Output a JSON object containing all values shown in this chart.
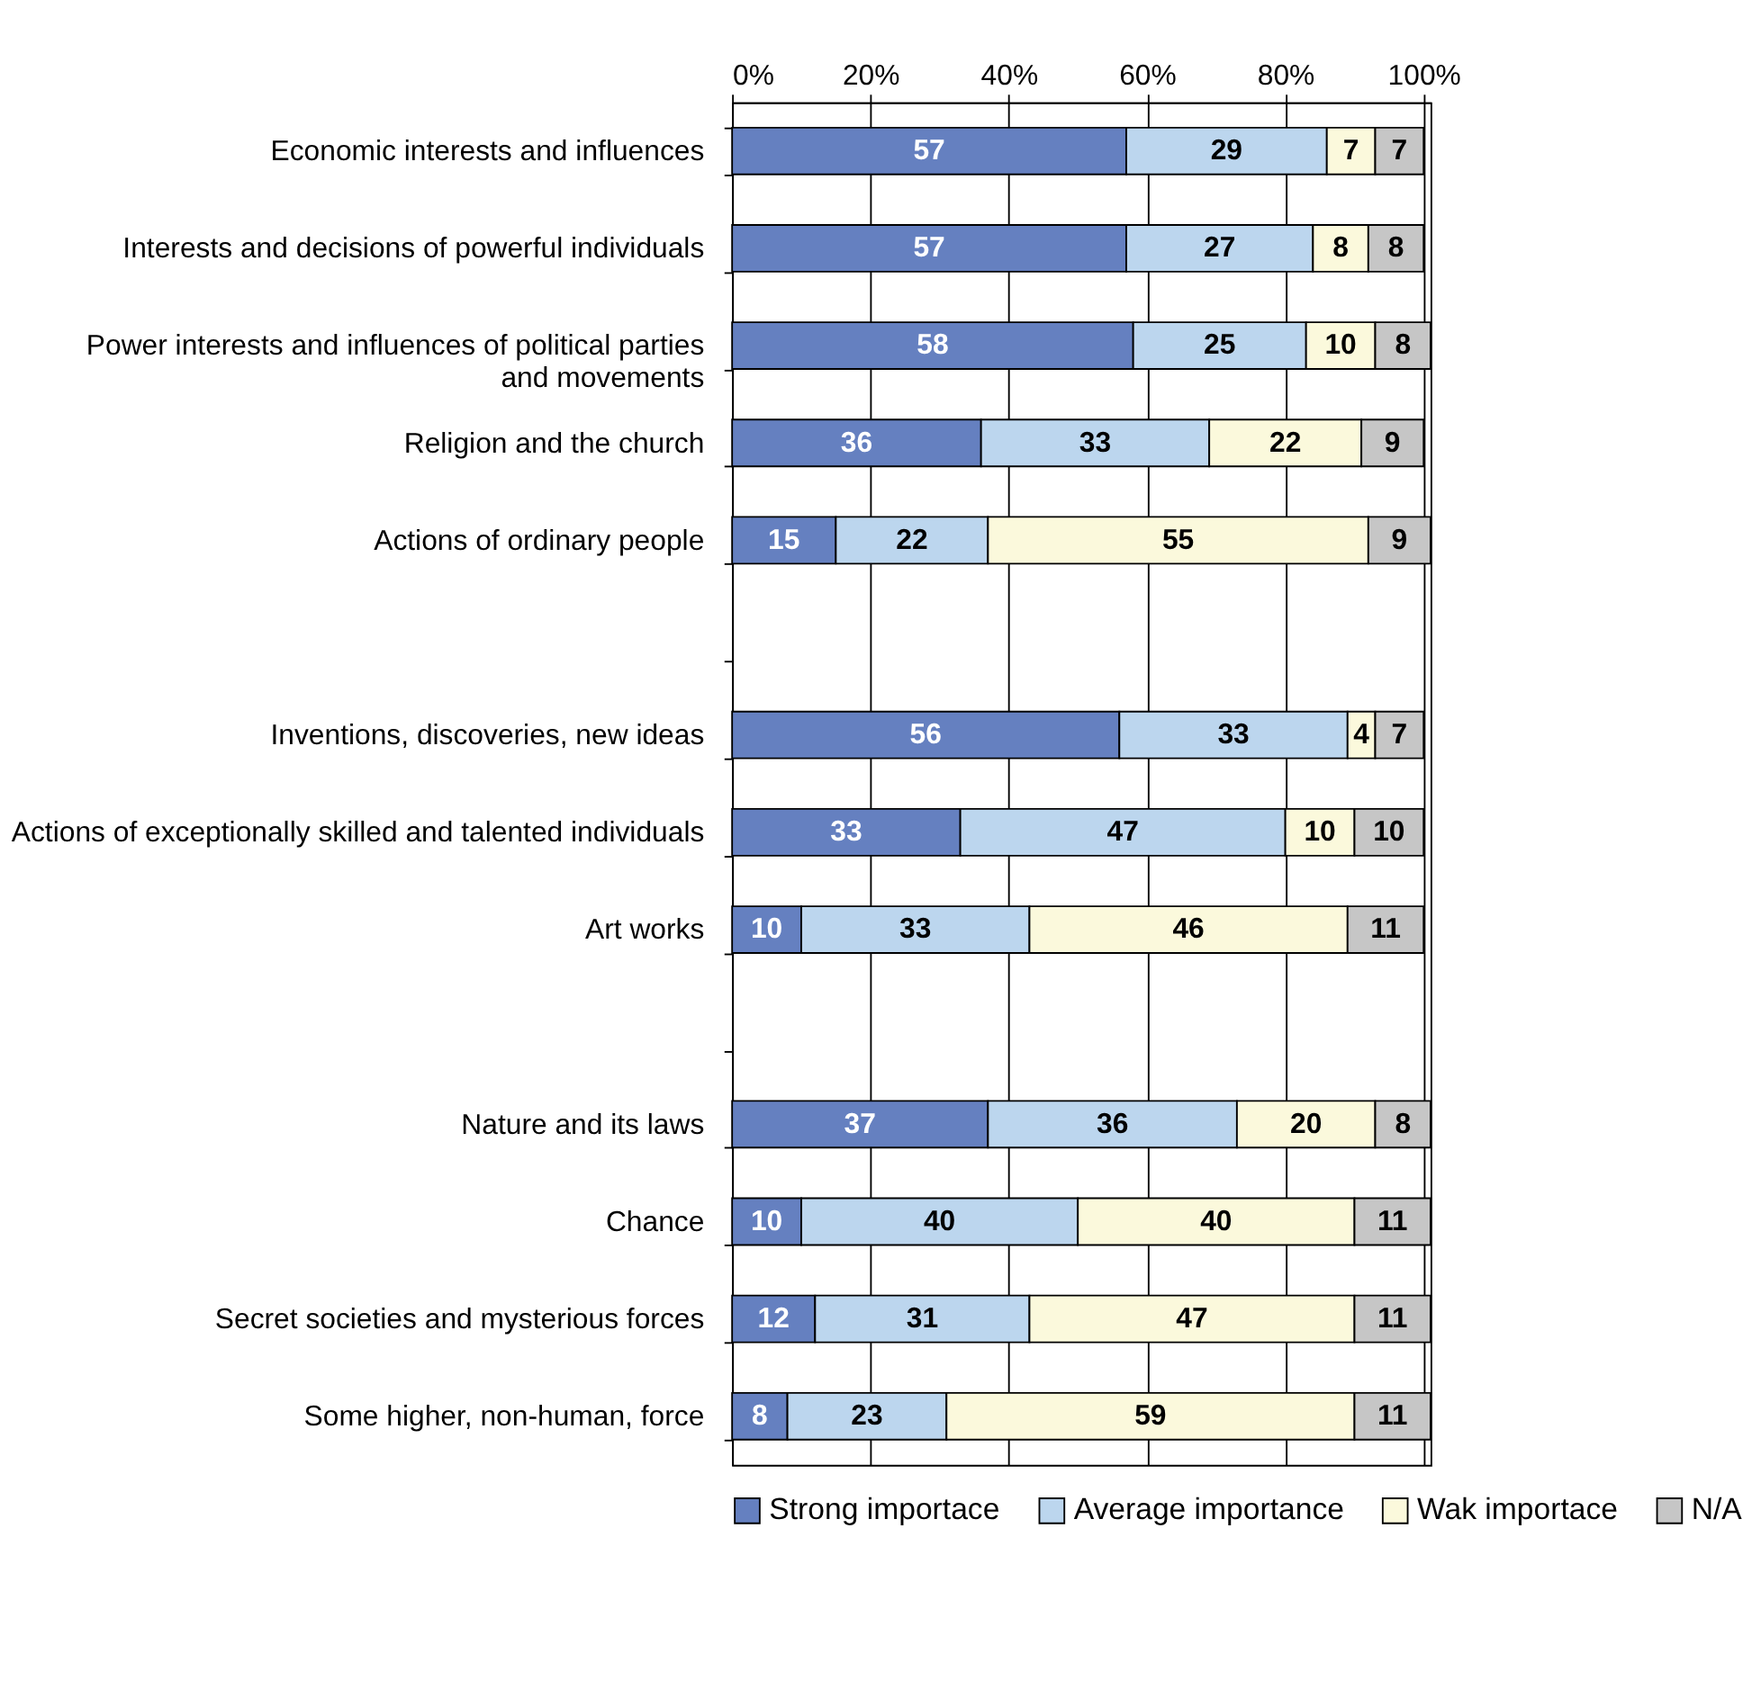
{
  "chart_data": {
    "type": "bar",
    "orientation": "horizontal",
    "stacked": true,
    "data_labels": true,
    "grid": "x",
    "legend": "bottom",
    "categories": [
      "Economic interests and influences",
      "Interests and decisions of powerful individuals",
      "Power interests and influences of political parties\nand movements",
      "Religion and the church",
      "Actions of ordinary people",
      null,
      "Inventions, discoveries, new ideas",
      "Actions of exceptionally skilled and talented individuals",
      "Art works",
      null,
      "Nature and its laws",
      "Chance",
      "Secret societies and mysterious forces",
      "Some higher, non-human, force"
    ],
    "xlim": [
      0,
      101
    ],
    "xticks": [
      {
        "value": 0,
        "label": "0%"
      },
      {
        "value": 20,
        "label": "20%"
      },
      {
        "value": 40,
        "label": "40%"
      },
      {
        "value": 60,
        "label": "60%"
      },
      {
        "value": 80,
        "label": "80%"
      },
      {
        "value": 100,
        "label": "100%"
      }
    ],
    "series": [
      {
        "name": "Strong importace",
        "color": "#6580c0",
        "values": [
          57,
          57,
          58,
          36,
          15,
          null,
          56,
          33,
          10,
          null,
          37,
          10,
          12,
          8
        ]
      },
      {
        "name": "Average importance",
        "color": "#bcd6ee",
        "values": [
          29,
          27,
          25,
          33,
          22,
          null,
          33,
          47,
          33,
          null,
          36,
          40,
          31,
          23
        ]
      },
      {
        "name": "Wak importace",
        "color": "#fbf9dc",
        "values": [
          7,
          8,
          10,
          22,
          55,
          null,
          4,
          10,
          46,
          null,
          20,
          40,
          47,
          59
        ]
      },
      {
        "name": "N/A",
        "color": "#c6c6c6",
        "values": [
          7,
          8,
          8,
          9,
          9,
          null,
          7,
          10,
          11,
          null,
          8,
          11,
          11,
          11
        ]
      }
    ]
  }
}
